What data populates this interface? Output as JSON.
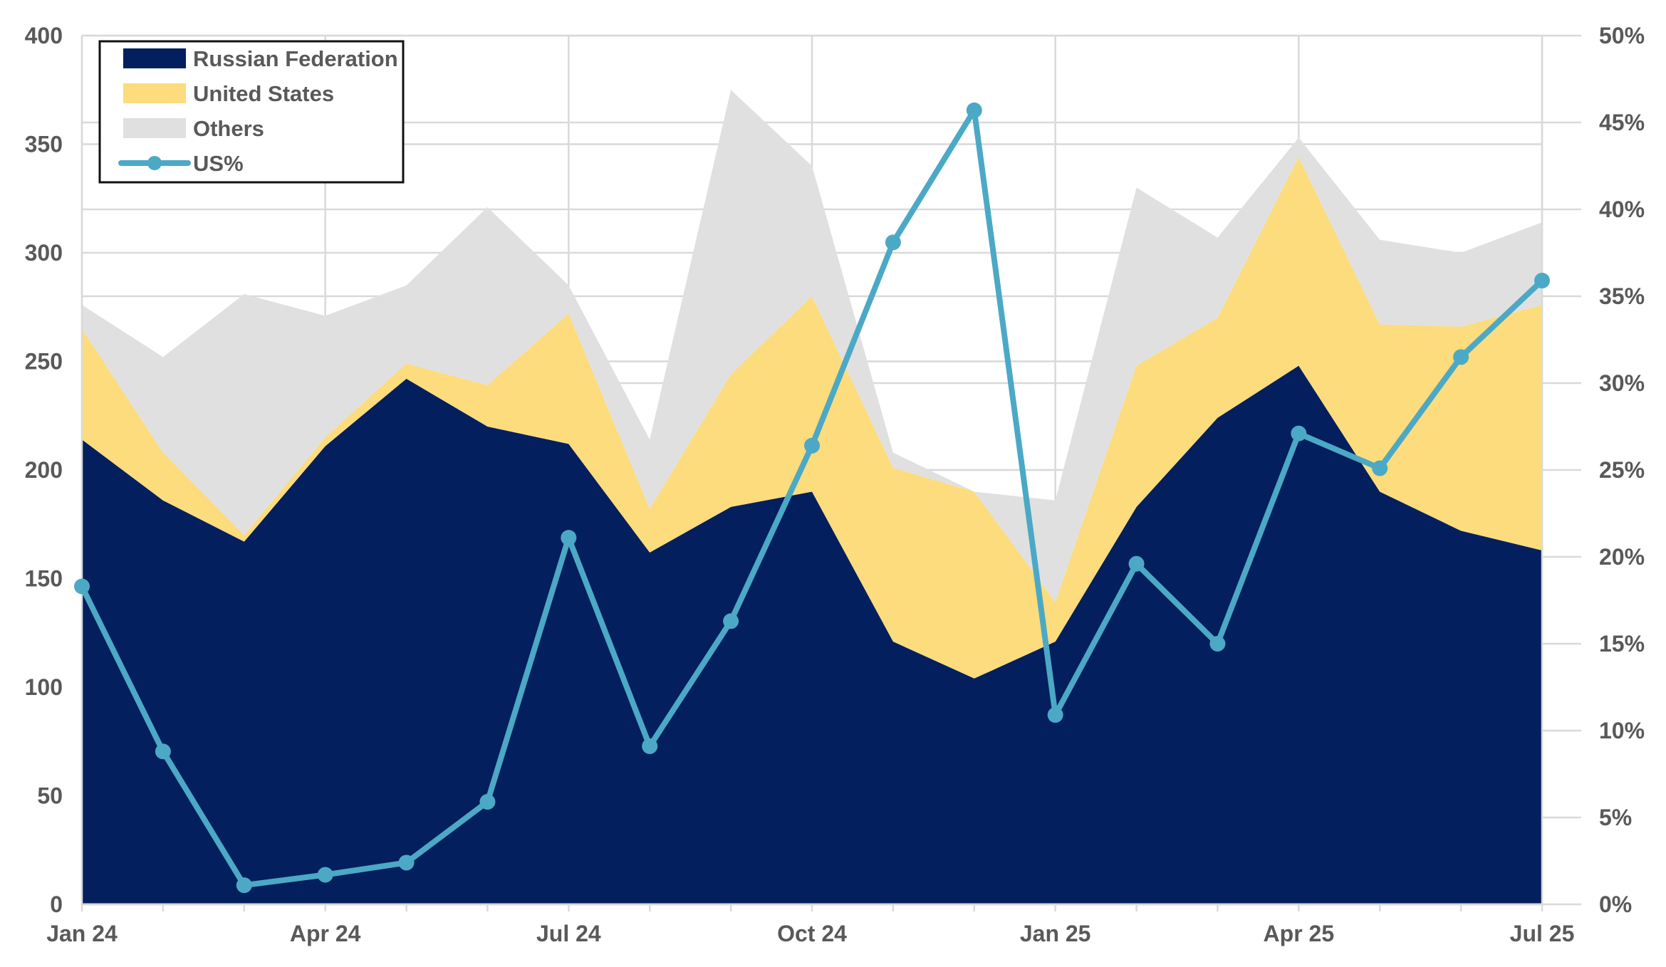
{
  "chart_data": {
    "type": "area",
    "categories": [
      "Jan 24",
      "Feb 24",
      "Mar 24",
      "Apr 24",
      "May 24",
      "Jun 24",
      "Jul 24",
      "Aug 24",
      "Sep 24",
      "Oct 24",
      "Nov 24",
      "Dec 24",
      "Jan 25",
      "Feb 25",
      "Mar 25",
      "Apr 25",
      "May 25",
      "Jun 25",
      "Jul 25"
    ],
    "x_tick_labels": [
      "Jan 24",
      "Apr 24",
      "Jul 24",
      "Oct 24",
      "Jan 25",
      "Apr 25",
      "Jul 25"
    ],
    "series": [
      {
        "name": "Russian Federation",
        "type": "stacked-area",
        "color": "#041f5e",
        "values": [
          214,
          186,
          167,
          211,
          242,
          220,
          212,
          162,
          183,
          190,
          121,
          104,
          121,
          183,
          224,
          248,
          190,
          172,
          163
        ]
      },
      {
        "name": "United States",
        "type": "stacked-area",
        "color": "#fcdc7c",
        "values": [
          51,
          22,
          3,
          4,
          7,
          19,
          60,
          20,
          61,
          90,
          80,
          86,
          18,
          65,
          46,
          96,
          77,
          94,
          113
        ]
      },
      {
        "name": "Others",
        "type": "stacked-area",
        "color": "#e0e0e0",
        "values": [
          11,
          44,
          111,
          56,
          36,
          82,
          13,
          32,
          131,
          60,
          7,
          0,
          47,
          82,
          37,
          9,
          39,
          34,
          38
        ]
      },
      {
        "name": "US%",
        "type": "line",
        "axis": "right",
        "color": "#4ba9c6",
        "values": [
          18.3,
          8.8,
          1.1,
          1.7,
          2.4,
          5.9,
          21.1,
          9.1,
          16.3,
          26.4,
          38.1,
          45.7,
          10.9,
          19.6,
          15.0,
          27.1,
          25.1,
          31.5,
          35.9
        ]
      }
    ],
    "y_left": {
      "min": 0,
      "max": 400,
      "ticks": [
        0,
        50,
        100,
        150,
        200,
        250,
        300,
        350,
        400
      ]
    },
    "y_right": {
      "min": 0,
      "max": 50,
      "ticks": [
        "0%",
        "5%",
        "10%",
        "15%",
        "20%",
        "25%",
        "30%",
        "35%",
        "40%",
        "45%",
        "50%"
      ]
    },
    "legend": {
      "position": "top-left",
      "entries": [
        "Russian Federation",
        "United States",
        "Others",
        "US%"
      ]
    },
    "grid": true,
    "title": "",
    "xlabel": "",
    "ylabel": ""
  }
}
